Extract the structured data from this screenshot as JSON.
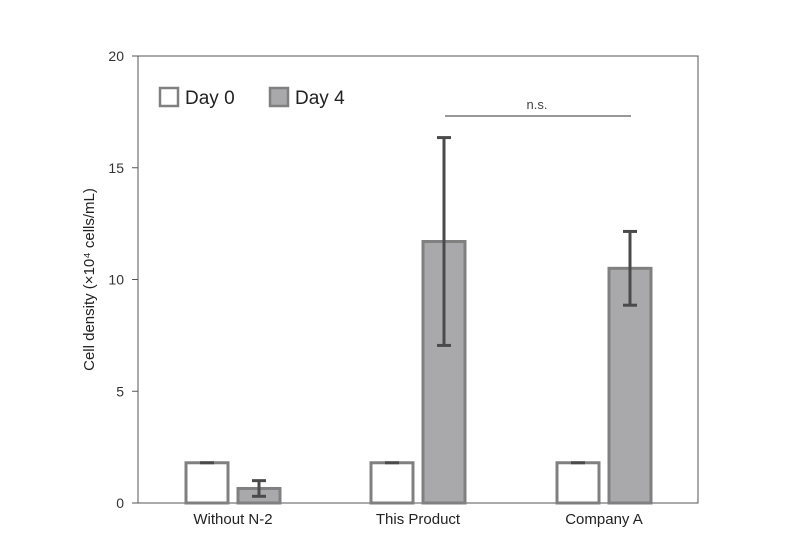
{
  "chart_data": {
    "type": "bar",
    "title": "",
    "xlabel": "",
    "ylabel": "Cell density (×10⁴ cells/mL)",
    "ylim": [
      0,
      20
    ],
    "yticks": [
      0,
      5,
      10,
      15,
      20
    ],
    "grid": false,
    "legend_placement": "top-left",
    "categories": [
      "Without N-2",
      "This Product",
      "Company A"
    ],
    "series": [
      {
        "name": "Day 0",
        "values": [
          1.8,
          1.8,
          1.8
        ],
        "errors": [
          0,
          0,
          0
        ],
        "fill": "#ffffff",
        "stroke": "#808080"
      },
      {
        "name": "Day 4",
        "values": [
          0.65,
          11.7,
          10.5
        ],
        "errors": [
          0.35,
          4.65,
          1.65
        ],
        "fill": "#a9a9ab",
        "stroke": "#808080"
      }
    ],
    "annotations": [
      {
        "text": "n.s.",
        "between": [
          "This Product",
          "Company A"
        ]
      }
    ],
    "colors": {
      "axis": "#555555",
      "error_bar": "#4a4a4a",
      "bracket": "#333333"
    }
  }
}
